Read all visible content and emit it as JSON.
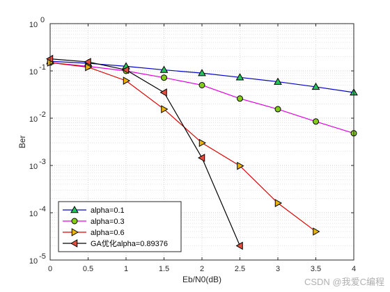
{
  "chart_data": {
    "type": "line",
    "xlabel": "Eb/N0(dB)",
    "ylabel": "Ber",
    "xlim": [
      0,
      4
    ],
    "ylim": [
      1e-05,
      1
    ],
    "y_scale": "log",
    "x_ticks": [
      "0",
      "0.5",
      "1",
      "1.5",
      "2",
      "2.5",
      "3",
      "3.5",
      "4"
    ],
    "y_tick_exponents": [
      "-5",
      "-4",
      "-3",
      "-2",
      "-1",
      "0"
    ],
    "y_tick_base": "10",
    "grid": "major and minor, dotted",
    "legend_position": "bottom-left",
    "series": [
      {
        "name": "alpha=0.1",
        "color": "#0000cc",
        "marker": "triangle-up",
        "marker_color": "#22c55e",
        "x": [
          0,
          0.5,
          1,
          1.5,
          2,
          2.5,
          3,
          3.5,
          4
        ],
        "y": [
          0.16,
          0.145,
          0.125,
          0.105,
          0.09,
          0.073,
          0.059,
          0.046,
          0.035
        ]
      },
      {
        "name": "alpha=0.3",
        "color": "#e000e0",
        "marker": "circle",
        "marker_color": "#84cc16",
        "x": [
          0,
          0.5,
          1,
          1.5,
          2,
          2.5,
          3,
          3.5,
          4
        ],
        "y": [
          0.15,
          0.125,
          0.1,
          0.072,
          0.05,
          0.026,
          0.0155,
          0.0085,
          0.0048
        ]
      },
      {
        "name": "alpha=0.6",
        "color": "#dd0000",
        "marker": "triangle-right",
        "marker_color": "#eab308",
        "x": [
          0,
          0.5,
          1,
          1.5,
          2,
          2.5,
          3,
          3.5
        ],
        "y": [
          0.15,
          0.12,
          0.062,
          0.0155,
          0.003,
          0.00098,
          0.00016,
          4e-05
        ]
      },
      {
        "name": "GA优化alpha=0.89376",
        "color": "#000000",
        "marker": "triangle-left",
        "marker_color": "#e74c3c",
        "x": [
          0,
          0.5,
          1,
          1.5,
          2,
          2.5
        ],
        "y": [
          0.18,
          0.155,
          0.105,
          0.035,
          0.00145,
          2e-05
        ]
      }
    ]
  },
  "watermark": "CSDN @我爱C编程"
}
